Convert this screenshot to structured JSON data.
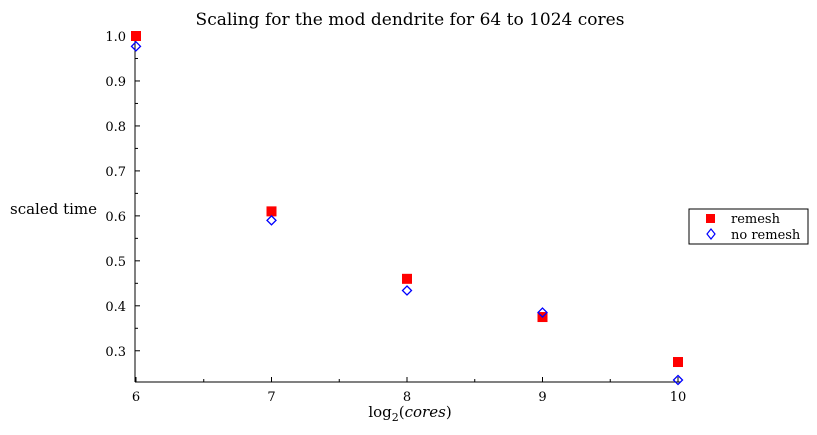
{
  "chart_data": {
    "type": "scatter",
    "title": "Scaling for the mod dendrite for 64 to 1024 cores",
    "xlabel": {
      "prefix": "log",
      "subscript": "2",
      "open": "(",
      "var": "cores",
      "close": ")"
    },
    "ylabel": "scaled time",
    "xlim": [
      6,
      10
    ],
    "ylim": [
      0.235,
      1.0
    ],
    "x_ticks": [
      6,
      7,
      8,
      9,
      10
    ],
    "y_ticks": [
      0.3,
      0.4,
      0.5,
      0.6,
      0.7,
      0.8,
      0.9,
      1.0
    ],
    "x_tick_labels": [
      "6",
      "7",
      "8",
      "9",
      "10"
    ],
    "y_tick_labels": [
      "0.3",
      "0.4",
      "0.5",
      "0.6",
      "0.7",
      "0.8",
      "0.9",
      "1.0"
    ],
    "grid": false,
    "legend_position": "right",
    "series": [
      {
        "name": "remesh",
        "marker": "square-filled",
        "color": "#ff0000",
        "x": [
          6,
          7,
          8,
          9,
          10
        ],
        "y": [
          1.0,
          0.61,
          0.46,
          0.375,
          0.275
        ]
      },
      {
        "name": "no remesh",
        "marker": "diamond-open",
        "color": "#0000ff",
        "x": [
          6,
          7,
          8,
          9,
          10
        ],
        "y": [
          0.977,
          0.59,
          0.434,
          0.385,
          0.235
        ]
      }
    ]
  }
}
